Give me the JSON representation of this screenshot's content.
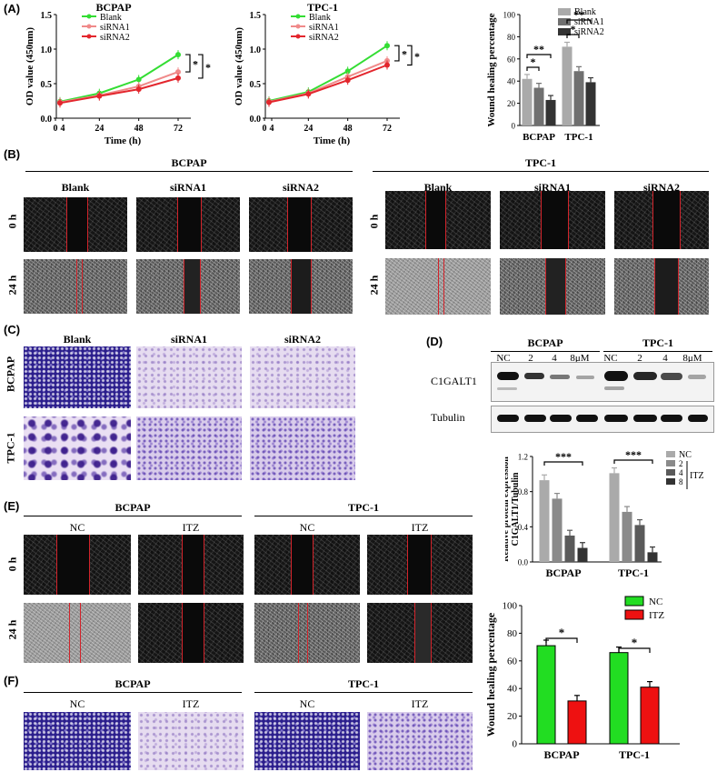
{
  "panels": {
    "A": "(A)",
    "B": "(B)",
    "C": "(C)",
    "D": "(D)",
    "E": "(E)",
    "F": "(F)"
  },
  "groups": {
    "bcpap": "BCPAP",
    "tpc1": "TPC-1"
  },
  "conditions": {
    "blank": "Blank",
    "sirna1": "siRNA1",
    "sirna2": "siRNA2",
    "nc": "NC",
    "itz": "ITZ"
  },
  "timepoints": {
    "t0": "0 h",
    "t24": "24 h"
  },
  "western": {
    "target": "C1GALT1",
    "loading": "Tubulin",
    "lanes": [
      "NC",
      "2",
      "4",
      "8μM",
      "NC",
      "2",
      "4",
      "8μM"
    ],
    "bcpap": "BCPAP",
    "tpc1": "TPC-1"
  },
  "colors": {
    "blank": "#33dd33",
    "sirna1": "#f08a8a",
    "sirna2": "#e3262d",
    "nc": "#22dd22",
    "itz": "#ee1111",
    "bar_blank": "#aaaaaa",
    "bar_si1": "#707070",
    "bar_si2": "#333333"
  },
  "chart_data": [
    {
      "type": "line",
      "id": "od-bcpap",
      "title": "BCPAP",
      "xlabel": "Time (h)",
      "ylabel": "OD value (450nm)",
      "x": [
        0,
        24,
        48,
        72
      ],
      "xticks": [
        "0",
        "4",
        "24",
        "48",
        "72"
      ],
      "yticks": [
        "0.0",
        "0.5",
        "1.0",
        "1.5"
      ],
      "ylim": [
        0,
        1.5
      ],
      "series": [
        {
          "name": "Blank",
          "values": [
            0.24,
            0.36,
            0.56,
            0.92
          ]
        },
        {
          "name": "siRNA1",
          "values": [
            0.23,
            0.33,
            0.46,
            0.67
          ]
        },
        {
          "name": "siRNA2",
          "values": [
            0.22,
            0.32,
            0.42,
            0.58
          ]
        }
      ],
      "sig": [
        "*",
        "*"
      ]
    },
    {
      "type": "line",
      "id": "od-tpc1",
      "title": "TPC-1",
      "xlabel": "Time (h)",
      "ylabel": "OD value (450nm)",
      "x": [
        0,
        24,
        48,
        72
      ],
      "xticks": [
        "0",
        "4",
        "24",
        "48",
        "72"
      ],
      "yticks": [
        "0.0",
        "0.5",
        "1.0",
        "1.5"
      ],
      "ylim": [
        0,
        1.5
      ],
      "series": [
        {
          "name": "Blank",
          "values": [
            0.25,
            0.38,
            0.68,
            1.05
          ]
        },
        {
          "name": "siRNA1",
          "values": [
            0.24,
            0.36,
            0.6,
            0.83
          ]
        },
        {
          "name": "siRNA2",
          "values": [
            0.23,
            0.35,
            0.55,
            0.77
          ]
        }
      ],
      "sig": [
        "*",
        "*"
      ]
    },
    {
      "type": "bar",
      "id": "wound-si",
      "ylabel": "Wound healing percentage",
      "categories": [
        "BCPAP",
        "TPC-1"
      ],
      "yticks": [
        "0",
        "20",
        "40",
        "60",
        "80",
        "100"
      ],
      "ylim": [
        0,
        100
      ],
      "series": [
        {
          "name": "Blank",
          "values": [
            42,
            71
          ]
        },
        {
          "name": "siRNA1",
          "values": [
            34,
            49
          ]
        },
        {
          "name": "siRNA2",
          "values": [
            23,
            39
          ]
        }
      ],
      "sig": [
        "*",
        "**",
        "*",
        "**"
      ]
    },
    {
      "type": "bar",
      "id": "wb-quant",
      "ylabel": "Relative protein expression",
      "ylabel2": "C1GALT1/Tubulin",
      "categories": [
        "BCPAP",
        "TPC-1"
      ],
      "yticks": [
        "0.0",
        "0.4",
        "0.8",
        "1.2"
      ],
      "ylim": [
        0,
        1.2
      ],
      "series": [
        {
          "name": "NC",
          "values": [
            0.93,
            1.01
          ]
        },
        {
          "name": "2",
          "values": [
            0.72,
            0.57
          ]
        },
        {
          "name": "4",
          "values": [
            0.3,
            0.42
          ]
        },
        {
          "name": "8",
          "values": [
            0.16,
            0.11
          ]
        }
      ],
      "legend_group": "ITZ",
      "sig": [
        "***",
        "***"
      ]
    },
    {
      "type": "bar",
      "id": "wound-itz",
      "ylabel": "Wound healing percentage",
      "categories": [
        "BCPAP",
        "TPC-1"
      ],
      "yticks": [
        "0",
        "20",
        "40",
        "60",
        "80",
        "100"
      ],
      "ylim": [
        0,
        100
      ],
      "series": [
        {
          "name": "NC",
          "values": [
            71,
            66
          ]
        },
        {
          "name": "ITZ",
          "values": [
            31,
            41
          ]
        }
      ],
      "sig": [
        "*",
        "*"
      ]
    }
  ]
}
